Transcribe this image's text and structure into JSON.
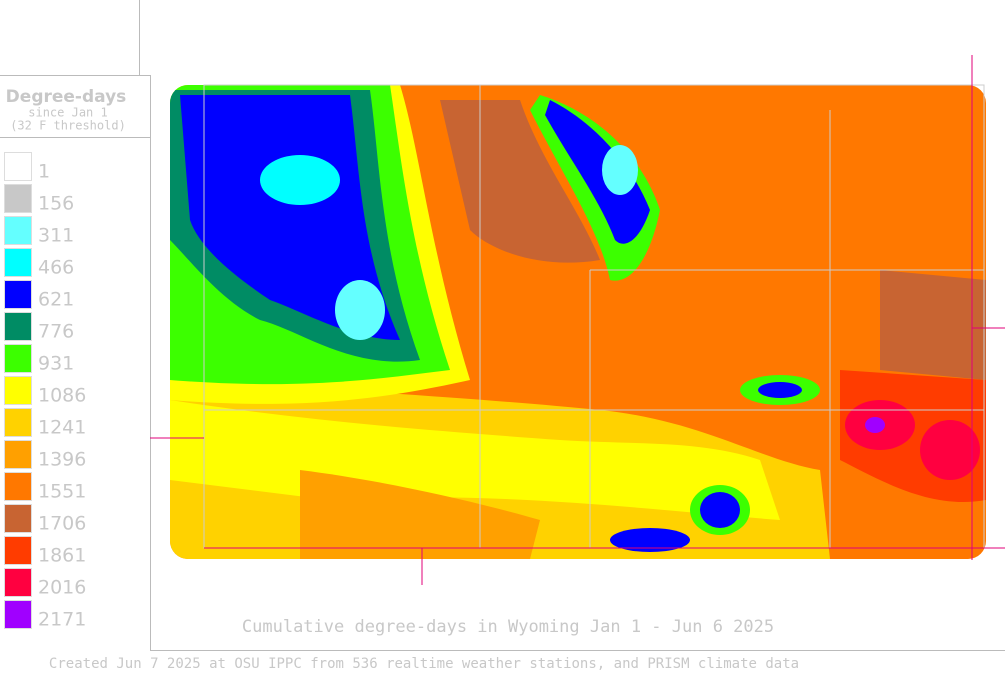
{
  "legend": {
    "title": "Degree-days",
    "subtitle": [
      "since Jan 1",
      "(32 F threshold)"
    ],
    "items": [
      {
        "label": "1",
        "color": "#ffffff"
      },
      {
        "label": "156",
        "color": "#c8c8c8"
      },
      {
        "label": "311",
        "color": "#64ffff"
      },
      {
        "label": "466",
        "color": "#00ffff"
      },
      {
        "label": "621",
        "color": "#0000ff"
      },
      {
        "label": "776",
        "color": "#008c64"
      },
      {
        "label": "931",
        "color": "#3cff00"
      },
      {
        "label": "1086",
        "color": "#ffff00"
      },
      {
        "label": "1241",
        "color": "#ffd200"
      },
      {
        "label": "1396",
        "color": "#ffa000"
      },
      {
        "label": "1551",
        "color": "#ff7800"
      },
      {
        "label": "1706",
        "color": "#c86432"
      },
      {
        "label": "1861",
        "color": "#ff3c00"
      },
      {
        "label": "2016",
        "color": "#ff0040"
      },
      {
        "label": "2171",
        "color": "#a000ff"
      }
    ]
  },
  "caption": "Cumulative degree-days in Wyoming  Jan 1 - Jun 6 2025",
  "footer": "Created Jun 7 2025 at OSU IPPC from 536 realtime weather stations, and PRISM climate data"
}
